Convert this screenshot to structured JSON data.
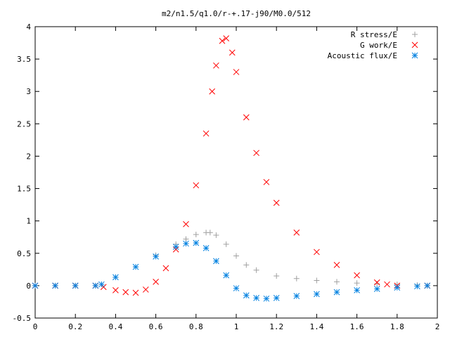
{
  "chart_data": {
    "type": "scatter",
    "title": "m2/n1.5/q1.0/r-+.17-j90/M0.0/512",
    "xlabel": "",
    "ylabel": "",
    "xlim": [
      0,
      2
    ],
    "ylim": [
      -0.5,
      4
    ],
    "xticks": [
      "0",
      "0.2",
      "0.4",
      "0.6",
      "0.8",
      "1",
      "1.2",
      "1.4",
      "1.6",
      "1.8",
      "2"
    ],
    "yticks": [
      "-0.5",
      "0",
      "0.5",
      "1",
      "1.5",
      "2",
      "2.5",
      "3",
      "3.5",
      "4"
    ],
    "legend_position": "top-right",
    "grid": false,
    "series": [
      {
        "name": "R stress/E",
        "marker": "plus",
        "color": "#a0a0a0",
        "x": [
          0.0,
          0.1,
          0.2,
          0.3,
          0.33,
          0.4,
          0.5,
          0.6,
          0.7,
          0.75,
          0.8,
          0.85,
          0.87,
          0.9,
          0.95,
          1.0,
          1.05,
          1.1,
          1.2,
          1.3,
          1.4,
          1.5,
          1.6,
          1.7,
          1.8,
          1.9,
          1.95
        ],
        "y": [
          0.0,
          0.0,
          0.0,
          0.0,
          0.02,
          0.13,
          0.29,
          0.47,
          0.64,
          0.72,
          0.79,
          0.82,
          0.82,
          0.78,
          0.64,
          0.46,
          0.32,
          0.24,
          0.15,
          0.11,
          0.08,
          0.06,
          0.04,
          0.03,
          0.02,
          0.01,
          0.0
        ]
      },
      {
        "name": "G work/E",
        "marker": "cross",
        "color": "#ff0000",
        "x": [
          0.0,
          0.1,
          0.2,
          0.3,
          0.34,
          0.4,
          0.45,
          0.5,
          0.55,
          0.6,
          0.65,
          0.7,
          0.75,
          0.8,
          0.85,
          0.88,
          0.9,
          0.93,
          0.95,
          0.98,
          1.0,
          1.05,
          1.1,
          1.15,
          1.2,
          1.3,
          1.4,
          1.5,
          1.6,
          1.7,
          1.75,
          1.8,
          1.95
        ],
        "y": [
          0.0,
          0.0,
          0.0,
          0.0,
          -0.02,
          -0.07,
          -0.1,
          -0.11,
          -0.06,
          0.06,
          0.27,
          0.56,
          0.95,
          1.55,
          2.35,
          3.0,
          3.4,
          3.78,
          3.82,
          3.6,
          3.3,
          2.6,
          2.05,
          1.6,
          1.28,
          0.82,
          0.52,
          0.32,
          0.16,
          0.05,
          0.02,
          0.0,
          0.0
        ]
      },
      {
        "name": "Acoustic flux/E",
        "marker": "star",
        "color": "#0080e0",
        "x": [
          0.0,
          0.1,
          0.2,
          0.3,
          0.33,
          0.4,
          0.5,
          0.6,
          0.7,
          0.75,
          0.8,
          0.85,
          0.9,
          0.95,
          1.0,
          1.05,
          1.1,
          1.15,
          1.2,
          1.3,
          1.4,
          1.5,
          1.6,
          1.7,
          1.8,
          1.9,
          1.95
        ],
        "y": [
          0.0,
          0.0,
          0.0,
          0.0,
          0.02,
          0.13,
          0.29,
          0.45,
          0.6,
          0.65,
          0.66,
          0.58,
          0.38,
          0.16,
          -0.04,
          -0.15,
          -0.19,
          -0.2,
          -0.19,
          -0.16,
          -0.13,
          -0.1,
          -0.07,
          -0.05,
          -0.03,
          -0.01,
          0.0
        ]
      }
    ]
  }
}
